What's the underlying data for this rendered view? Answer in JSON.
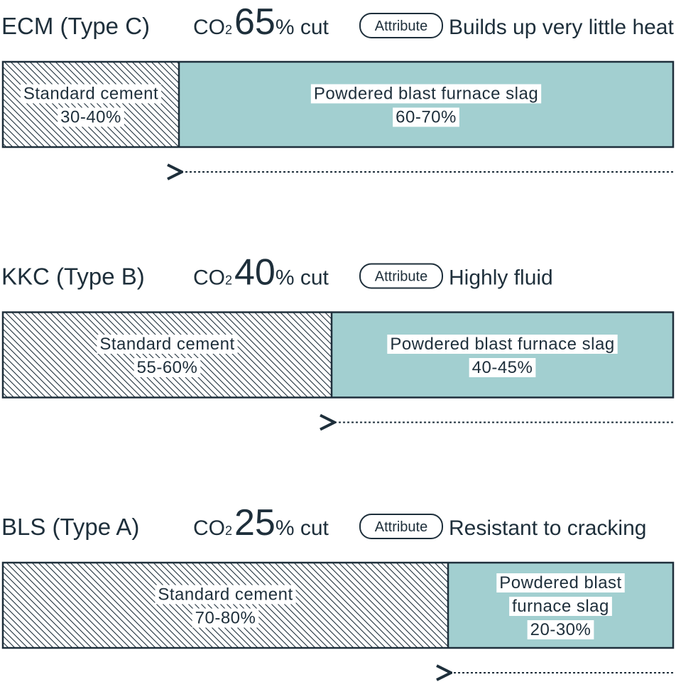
{
  "rows": [
    {
      "name": "ECM (Type C)",
      "co": "CO",
      "sub": "2",
      "percent": "65",
      "cut": "% cut",
      "badge": "Attribute",
      "description": "Builds up very little heat",
      "segments": [
        {
          "label": [
            "Standard cement"
          ],
          "range": "30-40%"
        },
        {
          "label": [
            "Powdered blast furnace slag"
          ],
          "range": "60-70%"
        }
      ]
    },
    {
      "name": "KKC (Type B)",
      "co": "CO",
      "sub": "2",
      "percent": "40",
      "cut": "% cut",
      "badge": "Attribute",
      "description": "Highly fluid",
      "segments": [
        {
          "label": [
            "Standard cement"
          ],
          "range": "55-60%"
        },
        {
          "label": [
            "Powdered blast furnace slag"
          ],
          "range": "40-45%"
        }
      ]
    },
    {
      "name": "BLS (Type A)",
      "co": "CO",
      "sub": "2",
      "percent": "25",
      "cut": "% cut",
      "badge": "Attribute",
      "description": "Resistant to cracking",
      "segments": [
        {
          "label": [
            "Standard cement"
          ],
          "range": "70-80%"
        },
        {
          "label": [
            "Powdered blast",
            "furnace slag"
          ],
          "range": "20-30%"
        }
      ]
    }
  ]
}
